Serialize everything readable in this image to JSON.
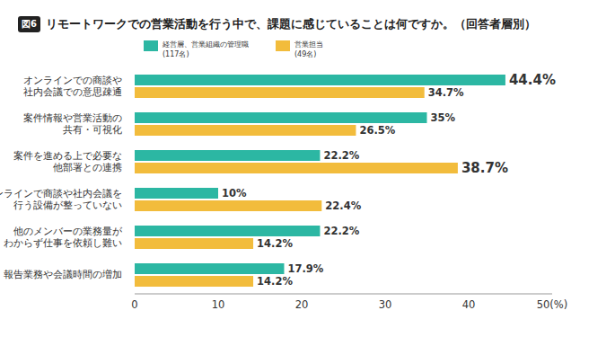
{
  "chart_data": {
    "type": "bar",
    "figure_label": "図6",
    "title": "リモートワークでの営業活動を行う中で、課題に感じていることは何ですか。（回答者層別）",
    "orientation": "horizontal",
    "categories": [
      "オンラインでの商談や\n社内会議での意思疎通",
      "案件情報や営業活動の\n共有・可視化",
      "案件を進める上で必要な\n他部署との連携",
      "オンラインで商談や社内会議を\n行う設備が整っていない",
      "他のメンバーの業務量が\nわからず仕事を依頼し難い",
      "報告業務や会議時間の増加"
    ],
    "series": [
      {
        "name": "経営層、営業組織の管理職\n(117名)",
        "color": "#2cb7a3",
        "values": [
          44.4,
          35,
          22.2,
          10,
          22.2,
          17.9
        ],
        "value_labels": [
          "44.4%",
          "35%",
          "22.2%",
          "10%",
          "22.2%",
          "17.9%"
        ]
      },
      {
        "name": "営業担当\n(49名)",
        "color": "#f2bc3c",
        "values": [
          34.7,
          26.5,
          38.7,
          22.4,
          14.2,
          14.2
        ],
        "value_labels": [
          "34.7%",
          "26.5%",
          "38.7%",
          "22.4%",
          "14.2%",
          "14.2%"
        ]
      }
    ],
    "xlim": [
      0,
      50
    ],
    "xticks": [
      0,
      10,
      20,
      30,
      40,
      {
        "value": 50,
        "label": "50(%)"
      }
    ],
    "data_labels": true,
    "grid": false
  }
}
